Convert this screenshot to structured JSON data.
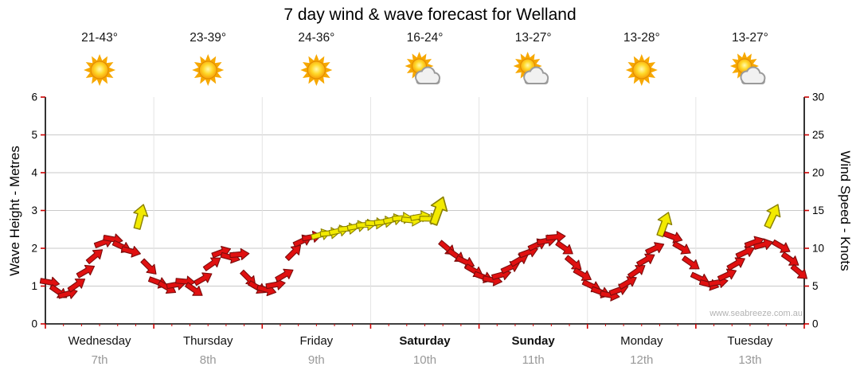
{
  "title": "7 day wind & wave forecast for Welland",
  "watermark": "www.seabreeze.com.au",
  "axes": {
    "left_label": "Wave Height - Metres",
    "right_label": "Wind Speed - Knots",
    "left_ticks": [
      0,
      1,
      2,
      3,
      4,
      5,
      6
    ],
    "right_ticks": [
      0,
      5,
      10,
      15,
      20,
      25,
      30
    ]
  },
  "days": [
    {
      "name": "Wednesday",
      "date": "7th",
      "temp": "21-43°",
      "icon": "sunny",
      "bold": false
    },
    {
      "name": "Thursday",
      "date": "8th",
      "temp": "23-39°",
      "icon": "sunny",
      "bold": false
    },
    {
      "name": "Friday",
      "date": "9th",
      "temp": "24-36°",
      "icon": "sunny",
      "bold": false
    },
    {
      "name": "Saturday",
      "date": "10th",
      "temp": "16-24°",
      "icon": "partly-cloudy",
      "bold": true
    },
    {
      "name": "Sunday",
      "date": "11th",
      "temp": "13-27°",
      "icon": "partly-cloudy",
      "bold": true
    },
    {
      "name": "Monday",
      "date": "12th",
      "temp": "13-28°",
      "icon": "sunny",
      "bold": false
    },
    {
      "name": "Tuesday",
      "date": "13th",
      "temp": "13-27°",
      "icon": "partly-cloudy",
      "bold": false
    }
  ],
  "colors": {
    "arrow_red": "#e01010",
    "arrow_red_stroke": "#7c0c0c",
    "arrow_yellow": "#f2ea00",
    "arrow_yellow_stroke": "#8a8000",
    "grid": "#c9c9c9",
    "day_grid": "#e4e4e4",
    "axis": "#000000",
    "tick": "#cc0000",
    "day_text": "#111111",
    "date_text": "#999999",
    "watermark": "#b3b3b3"
  },
  "chart_data": {
    "type": "scatter",
    "title": "7 day wind & wave forecast for Welland",
    "description": "Wind arrows plotted over time; arrow height = wind speed in knots (right axis) / equivalent wave height in metres (left axis, 1 m = 5 kn). Arrow colour: r = red (lighter wind), y = yellow (stronger wind). Arrow rotation = wind direction (0 = pointing right, negative = tilted up).",
    "x_axis": {
      "unit": "time",
      "days": 7,
      "points_per_day": 12,
      "day_labels": [
        "Wednesday 7th",
        "Thursday 8th",
        "Friday 9th",
        "Saturday 10th",
        "Sunday 11th",
        "Monday 12th",
        "Tuesday 13th"
      ]
    },
    "y_left": {
      "label": "Wave Height - Metres",
      "range": [
        0,
        6
      ],
      "ticks": [
        0,
        1,
        2,
        3,
        4,
        5,
        6
      ]
    },
    "y_right": {
      "label": "Wind Speed - Knots",
      "range": [
        0,
        30
      ],
      "ticks": [
        0,
        5,
        10,
        15,
        20,
        25,
        30
      ]
    },
    "grid": true,
    "series": [
      {
        "name": "Wind speed & direction",
        "unit": "knots",
        "point_format": [
          "knots",
          "color",
          "rotation_deg",
          "scale(optional)"
        ],
        "points": [
          [
            5.5,
            "r",
            10
          ],
          [
            4.2,
            "r",
            35
          ],
          [
            4.0,
            "r",
            -15
          ],
          [
            5.2,
            "r",
            -35
          ],
          [
            7.0,
            "r",
            -30
          ],
          [
            9.0,
            "r",
            -40
          ],
          [
            10.8,
            "r",
            -20
          ],
          [
            11.2,
            "r",
            10
          ],
          [
            10.2,
            "r",
            25
          ],
          [
            9.6,
            "r",
            15
          ],
          [
            14.2,
            "y",
            -75,
            1.3
          ],
          [
            7.5,
            "r",
            45
          ],
          [
            5.5,
            "r",
            20
          ],
          [
            4.8,
            "r",
            30
          ],
          [
            5.2,
            "r",
            -10
          ],
          [
            5.6,
            "r",
            5
          ],
          [
            4.5,
            "r",
            35
          ],
          [
            6.0,
            "r",
            -30
          ],
          [
            8.0,
            "r",
            -35
          ],
          [
            9.5,
            "r",
            -20
          ],
          [
            8.8,
            "r",
            15
          ],
          [
            9.2,
            "r",
            -5
          ],
          [
            6.0,
            "r",
            45
          ],
          [
            4.8,
            "r",
            30
          ],
          [
            4.5,
            "r",
            15
          ],
          [
            5.2,
            "r",
            -10
          ],
          [
            6.5,
            "r",
            -30
          ],
          [
            9.5,
            "r",
            -45
          ],
          [
            11.0,
            "r",
            -25
          ],
          [
            11.5,
            "r",
            -10
          ],
          [
            11.8,
            "y",
            -15
          ],
          [
            12.0,
            "y",
            -5
          ],
          [
            12.3,
            "y",
            -12
          ],
          [
            12.6,
            "y",
            -4
          ],
          [
            12.9,
            "y",
            -10
          ],
          [
            13.1,
            "y",
            -3
          ],
          [
            13.3,
            "y",
            2
          ],
          [
            13.5,
            "y",
            -6
          ],
          [
            13.8,
            "y",
            -12
          ],
          [
            14.0,
            "y",
            -4
          ],
          [
            13.7,
            "y",
            6
          ],
          [
            14.2,
            "y",
            -10
          ],
          [
            13.9,
            "y",
            1
          ],
          [
            15.0,
            "y",
            -70,
            1.5
          ],
          [
            10.0,
            "r",
            40
          ],
          [
            9.0,
            "r",
            35
          ],
          [
            8.2,
            "r",
            25
          ],
          [
            7.0,
            "r",
            30
          ],
          [
            6.2,
            "r",
            20
          ],
          [
            5.8,
            "r",
            10
          ],
          [
            6.5,
            "r",
            -15
          ],
          [
            7.5,
            "r",
            -25
          ],
          [
            8.5,
            "r",
            -30
          ],
          [
            9.5,
            "r",
            -20
          ],
          [
            10.5,
            "r",
            -25
          ],
          [
            11.0,
            "r",
            -10
          ],
          [
            11.5,
            "r",
            -5
          ],
          [
            10.0,
            "r",
            35
          ],
          [
            8.0,
            "r",
            40
          ],
          [
            6.5,
            "r",
            30
          ],
          [
            5.0,
            "r",
            25
          ],
          [
            4.2,
            "r",
            20
          ],
          [
            3.8,
            "r",
            10
          ],
          [
            4.5,
            "r",
            -20
          ],
          [
            5.5,
            "r",
            -30
          ],
          [
            7.0,
            "r",
            -35
          ],
          [
            8.5,
            "r",
            -30
          ],
          [
            10.0,
            "r",
            -25
          ],
          [
            13.2,
            "y",
            -70,
            1.3
          ],
          [
            11.5,
            "r",
            20
          ],
          [
            10.0,
            "r",
            30
          ],
          [
            8.0,
            "r",
            35
          ],
          [
            6.0,
            "r",
            25
          ],
          [
            5.2,
            "r",
            15
          ],
          [
            5.5,
            "r",
            -10
          ],
          [
            6.5,
            "r",
            -25
          ],
          [
            8.0,
            "r",
            -30
          ],
          [
            9.5,
            "r",
            -25
          ],
          [
            10.8,
            "r",
            -20
          ],
          [
            10.5,
            "r",
            -15
          ],
          [
            14.3,
            "y",
            -65,
            1.3
          ],
          [
            10.2,
            "r",
            30
          ],
          [
            8.5,
            "r",
            35
          ],
          [
            6.8,
            "r",
            40
          ]
        ]
      }
    ]
  }
}
